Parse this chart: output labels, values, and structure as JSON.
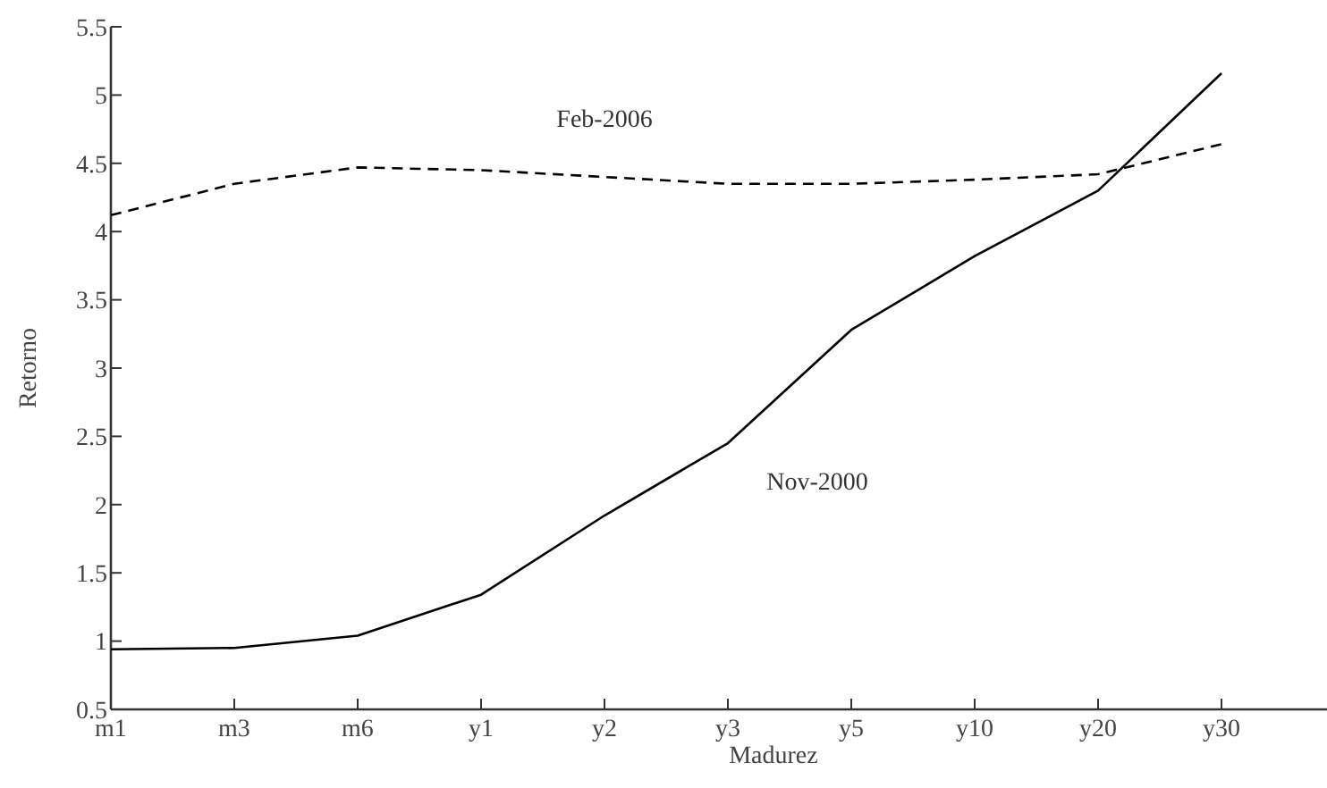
{
  "chart_data": {
    "type": "line",
    "xlabel": "Madurez",
    "ylabel": "Retorno",
    "categories": [
      "m1",
      "m3",
      "m6",
      "y1",
      "y2",
      "y3",
      "y5",
      "y10",
      "y20",
      "y30"
    ],
    "series": [
      {
        "name": "Feb-2006",
        "color": "#000000",
        "line_style": "dashed",
        "values": [
          4.12,
          4.35,
          4.47,
          4.45,
          4.4,
          4.35,
          4.35,
          4.38,
          4.42,
          4.64
        ]
      },
      {
        "name": "Nov-2000",
        "color": "#000000",
        "line_style": "solid",
        "values": [
          0.94,
          0.95,
          1.04,
          1.34,
          1.92,
          2.45,
          3.28,
          3.82,
          4.3,
          5.16
        ]
      }
    ],
    "ylim": [
      0.5,
      5.5
    ],
    "yticks": [
      0.5,
      1,
      1.5,
      2,
      2.5,
      3,
      3.5,
      4,
      4.5,
      5,
      5.5
    ],
    "grid": false,
    "marker": "none"
  }
}
